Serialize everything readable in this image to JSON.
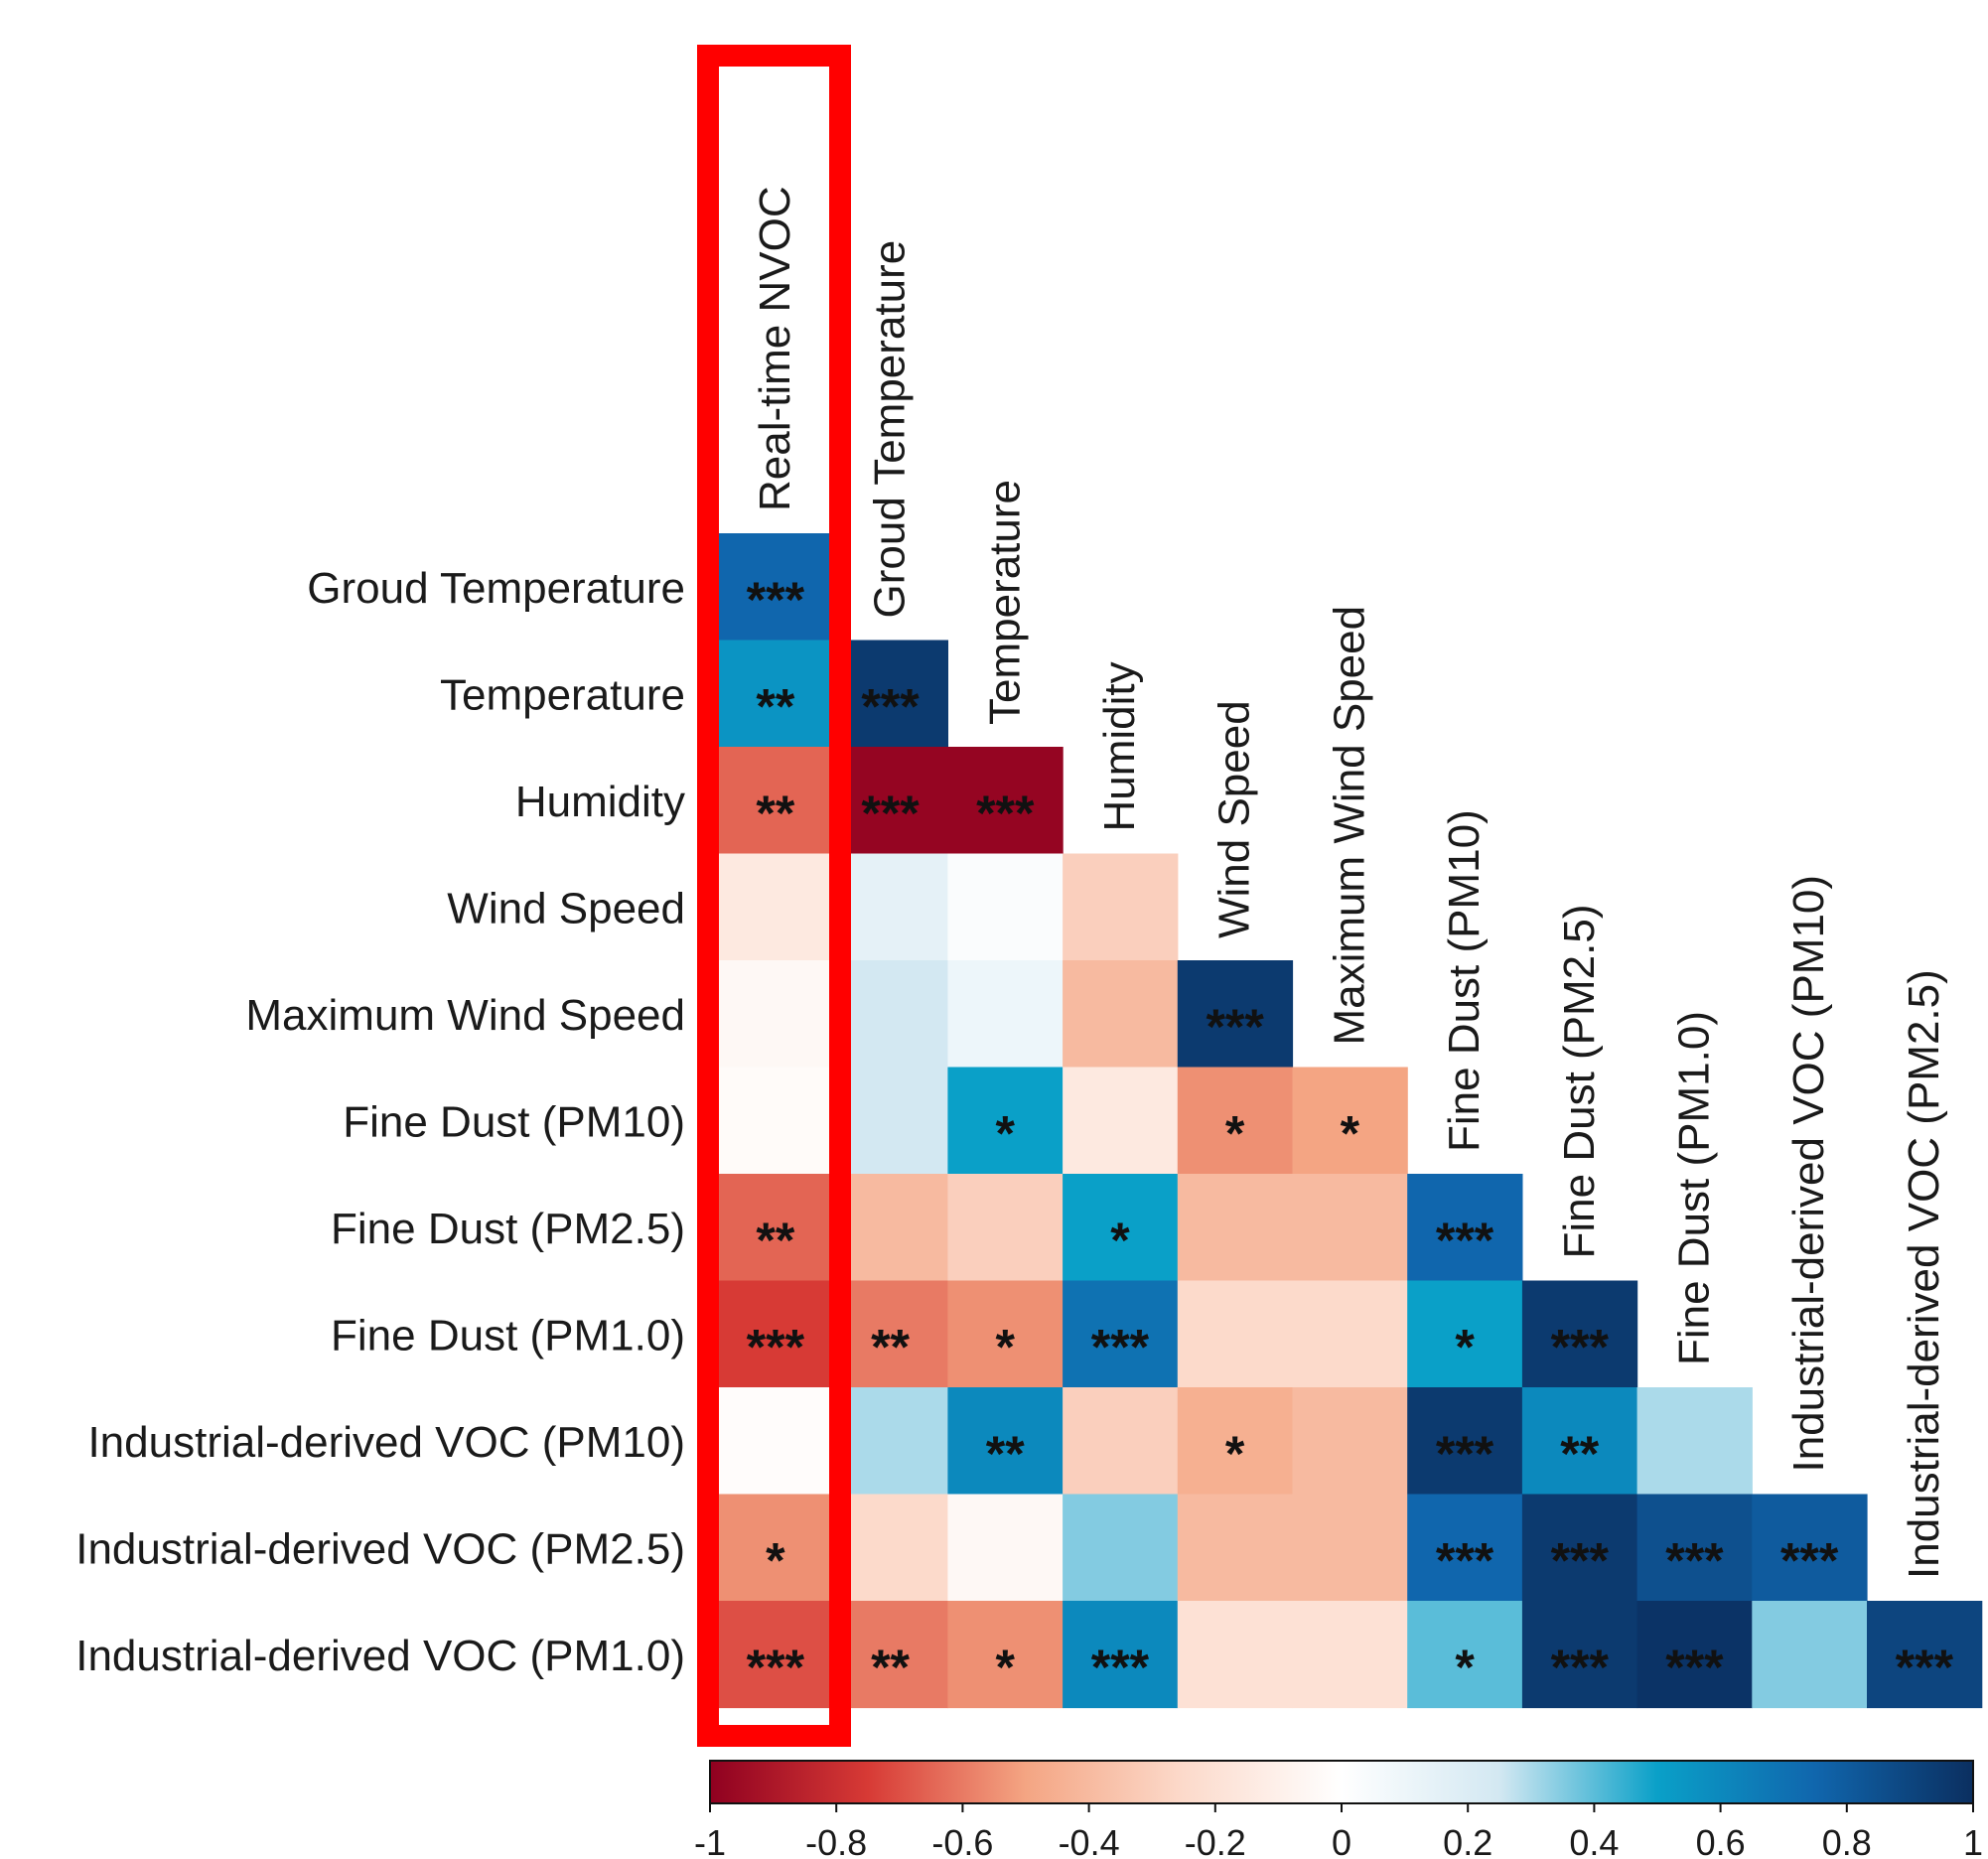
{
  "chart_data": {
    "type": "heatmap",
    "subtype": "lower-triangular correlation matrix",
    "column_labels": [
      "Real-time NVOC",
      "Groud Temperature",
      "Temperature",
      "Humidity",
      "Wind Speed",
      "Maximum Wind Speed",
      "Fine Dust (PM10)",
      "Fine Dust (PM2.5)",
      "Fine Dust (PM1.0)",
      "Industrial-derived VOC (PM10)",
      "Industrial-derived VOC (PM2.5)"
    ],
    "row_labels": [
      "Groud Temperature",
      "Temperature",
      "Humidity",
      "Wind Speed",
      "Maximum Wind Speed",
      "Fine Dust (PM10)",
      "Fine Dust (PM2.5)",
      "Fine Dust (PM1.0)",
      "Industrial-derived VOC (PM10)",
      "Industrial-derived VOC (PM2.5)",
      "Industrial-derived VOC (PM1.0)"
    ],
    "values": [
      [
        0.75
      ],
      [
        0.55,
        0.95
      ],
      [
        -0.65,
        -0.98,
        -0.98
      ],
      [
        -0.15,
        0.15,
        0.03,
        -0.3
      ],
      [
        -0.05,
        0.25,
        0.1,
        -0.4,
        0.95
      ],
      [
        -0.03,
        0.25,
        0.5,
        -0.15,
        -0.55,
        -0.5
      ],
      [
        -0.65,
        -0.4,
        -0.3,
        0.5,
        -0.4,
        -0.4,
        0.75
      ],
      [
        -0.75,
        -0.6,
        -0.55,
        0.7,
        -0.25,
        -0.25,
        0.5,
        0.95
      ],
      [
        -0.02,
        0.3,
        0.6,
        -0.3,
        -0.45,
        -0.4,
        0.95,
        0.6,
        0.3
      ],
      [
        -0.55,
        -0.25,
        -0.05,
        0.35,
        -0.4,
        -0.4,
        0.75,
        0.95,
        0.85,
        0.8
      ],
      [
        -0.7,
        -0.6,
        -0.55,
        0.6,
        -0.2,
        -0.2,
        0.4,
        0.95,
        0.98,
        0.35,
        0.9
      ]
    ],
    "significance": [
      [
        "***"
      ],
      [
        "**",
        "***"
      ],
      [
        "**",
        "***",
        "***"
      ],
      [
        "",
        "",
        "",
        ""
      ],
      [
        "",
        "",
        "",
        "",
        "***"
      ],
      [
        "",
        "",
        "*",
        "",
        "*",
        "*"
      ],
      [
        "**",
        "",
        "",
        "*",
        "",
        "",
        "***"
      ],
      [
        "***",
        "**",
        "*",
        "***",
        "",
        "",
        "*",
        "***"
      ],
      [
        "",
        "",
        "**",
        "",
        "*",
        "",
        "***",
        "**",
        ""
      ],
      [
        "*",
        "",
        "",
        "",
        "",
        "",
        "***",
        "***",
        "***",
        "***"
      ],
      [
        "***",
        "**",
        "*",
        "***",
        "",
        "",
        "*",
        "***",
        "***",
        "",
        "***"
      ]
    ],
    "highlighted_column": "Real-time NVOC",
    "colorbar": {
      "range": [
        -1,
        1
      ],
      "ticks": [
        "-1",
        "-0.8",
        "-0.6",
        "-0.4",
        "-0.2",
        "0",
        "0.2",
        "0.4",
        "0.6",
        "0.8",
        "1"
      ],
      "tick_values": [
        -1,
        -0.8,
        -0.6,
        -0.4,
        -0.2,
        0,
        0.2,
        0.4,
        0.6,
        0.8,
        1
      ],
      "colormap": "red-white-blue diverging",
      "colors": [
        "#8f0020",
        "#d73a35",
        "#f4a583",
        "#fcdacb",
        "#ffffff",
        "#d3e8f2",
        "#0aa0c8",
        "#1066ad",
        "#0b2f60"
      ]
    },
    "highlight_color": "#ff0000"
  }
}
